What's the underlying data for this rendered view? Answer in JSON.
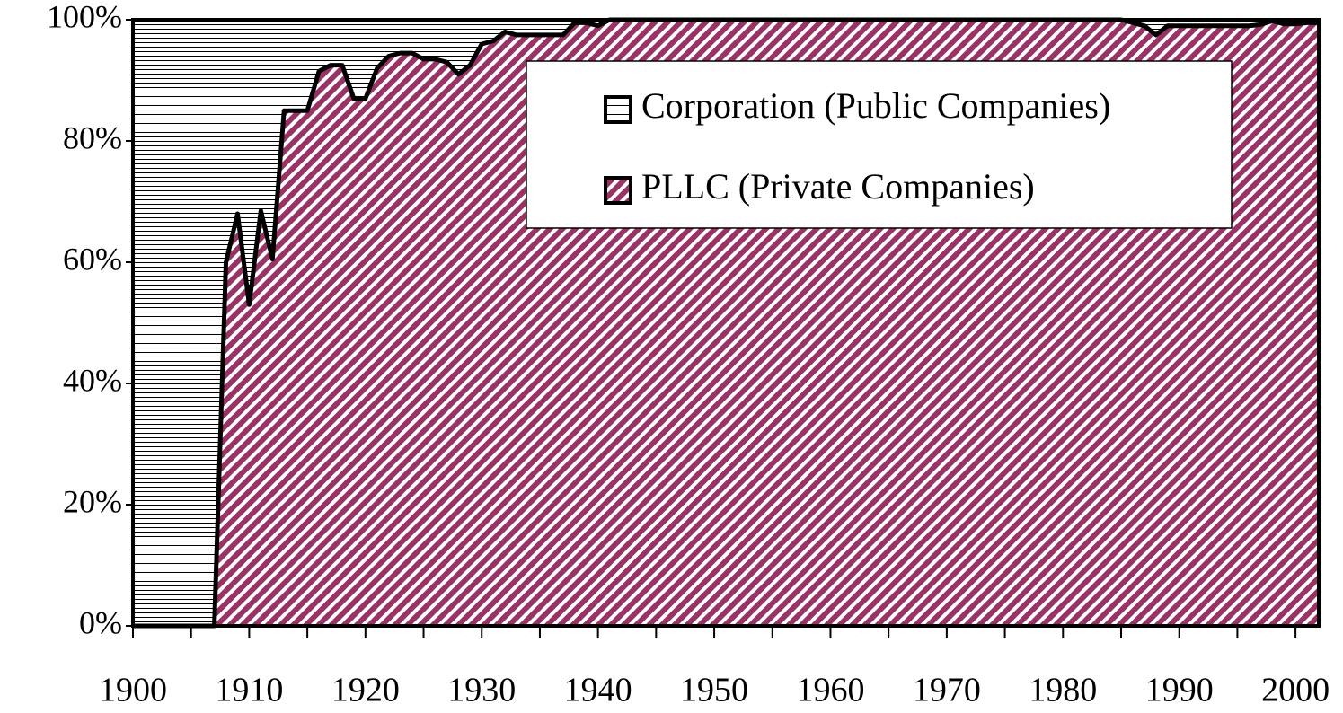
{
  "chart_data": {
    "type": "stacked_area",
    "x": [
      1900,
      1901,
      1902,
      1903,
      1904,
      1905,
      1906,
      1907,
      1908,
      1909,
      1910,
      1911,
      1912,
      1913,
      1914,
      1915,
      1916,
      1917,
      1918,
      1919,
      1920,
      1921,
      1922,
      1923,
      1924,
      1925,
      1926,
      1927,
      1928,
      1929,
      1930,
      1931,
      1932,
      1933,
      1934,
      1935,
      1936,
      1937,
      1938,
      1939,
      1940,
      1941,
      1942,
      1943,
      1944,
      1945,
      1946,
      1947,
      1948,
      1949,
      1950,
      1951,
      1952,
      1953,
      1954,
      1955,
      1956,
      1957,
      1958,
      1959,
      1960,
      1961,
      1962,
      1963,
      1964,
      1965,
      1966,
      1967,
      1968,
      1969,
      1970,
      1971,
      1972,
      1973,
      1974,
      1975,
      1976,
      1977,
      1978,
      1979,
      1980,
      1981,
      1982,
      1983,
      1984,
      1985,
      1986,
      1987,
      1988,
      1989,
      1990,
      1991,
      1992,
      1993,
      1994,
      1995,
      1996,
      1997,
      1998,
      1999,
      2000,
      2001,
      2002
    ],
    "series": [
      {
        "name": "PLLC (Private Companies)",
        "color": "#993366",
        "pattern": "diagonal",
        "values": [
          0,
          0,
          0,
          0,
          0,
          0,
          0,
          0,
          60,
          68,
          53,
          68.5,
          60.5,
          85,
          85,
          85,
          91.5,
          92.5,
          92.5,
          87,
          87,
          92,
          94,
          94.5,
          94.5,
          93.5,
          93.5,
          93,
          91,
          92.5,
          96,
          96.5,
          98,
          97.5,
          97.5,
          97.5,
          97.5,
          97.5,
          99.5,
          99.5,
          99,
          100,
          100,
          100,
          100,
          100,
          100,
          100,
          100,
          100,
          100,
          100,
          100,
          100,
          100,
          100,
          100,
          100,
          100,
          100,
          100,
          100,
          100,
          100,
          100,
          100,
          100,
          100,
          100,
          100,
          100,
          100,
          100,
          100,
          100,
          100,
          100,
          100,
          100,
          100,
          100,
          100,
          100,
          100,
          100,
          100,
          99.5,
          99,
          97.5,
          99,
          99,
          99,
          99,
          99,
          99,
          99,
          99,
          99.2,
          99.8,
          99.3,
          99.3,
          99.5,
          99.5
        ]
      },
      {
        "name": "Corporation (Public Companies)",
        "color": "#000000",
        "pattern": "horizontal",
        "values": [
          100,
          100,
          100,
          100,
          100,
          100,
          100,
          100,
          40,
          32,
          47,
          31.5,
          39.5,
          15,
          15,
          15,
          8.5,
          7.5,
          7.5,
          13,
          13,
          8,
          6,
          5.5,
          5.5,
          6.5,
          6.5,
          7,
          9,
          7.5,
          4,
          3.5,
          2,
          2.5,
          2.5,
          2.5,
          2.5,
          2.5,
          0.5,
          0.5,
          1,
          0,
          0,
          0,
          0,
          0,
          0,
          0,
          0,
          0,
          0,
          0,
          0,
          0,
          0,
          0,
          0,
          0,
          0,
          0,
          0,
          0,
          0,
          0,
          0,
          0,
          0,
          0,
          0,
          0,
          0,
          0,
          0,
          0,
          0,
          0,
          0,
          0,
          0,
          0,
          0,
          0,
          0,
          0,
          0,
          0,
          0.5,
          1,
          2.5,
          1,
          1,
          1,
          1,
          1,
          1,
          1,
          1,
          0.8,
          0.2,
          0.7,
          0.7,
          0.5,
          0.5
        ]
      }
    ],
    "xlim": [
      1900,
      2002
    ],
    "xticks": [
      1900,
      1910,
      1920,
      1930,
      1940,
      1950,
      1960,
      1970,
      1980,
      1990,
      2000
    ],
    "ylim": [
      0,
      100
    ],
    "yticks": [
      {
        "value": 0,
        "label": "0%"
      },
      {
        "value": 20,
        "label": "20%"
      },
      {
        "value": 40,
        "label": "40%"
      },
      {
        "value": 60,
        "label": "60%"
      },
      {
        "value": 80,
        "label": "80%"
      },
      {
        "value": 100,
        "label": "100%"
      }
    ]
  }
}
